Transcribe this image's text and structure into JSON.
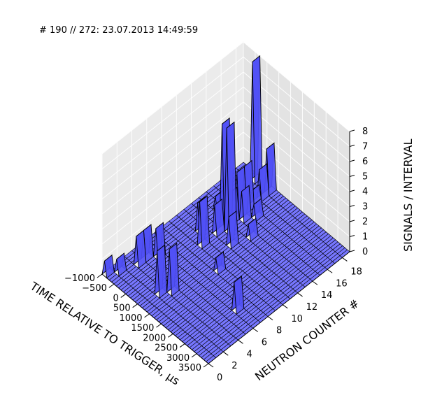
{
  "header_text": "# 190 // 272: 23.07.2013 14:49:59",
  "chart_data": {
    "type": "area",
    "title": "",
    "xlabel": "TIME RELATIVE TO TRIGGER, μs",
    "ylabel": "NEUTRON COUNTER #",
    "zlabel": "SIGNALS / INTERVAL",
    "xlim": [
      -1000,
      3500
    ],
    "ylim": [
      0,
      19
    ],
    "zlim": [
      0,
      8
    ],
    "xticks": [
      "−1000",
      "−500",
      "0",
      "500",
      "1000",
      "1500",
      "2000",
      "2500",
      "3000",
      "3500"
    ],
    "xtick_values": [
      -1000,
      -500,
      0,
      500,
      1000,
      1500,
      2000,
      2500,
      3000,
      3500
    ],
    "yticks": [
      "0",
      "2",
      "4",
      "6",
      "8",
      "10",
      "12",
      "14",
      "16",
      "18"
    ],
    "ytick_values": [
      0,
      2,
      4,
      6,
      8,
      10,
      12,
      14,
      16,
      18
    ],
    "zticks": [
      "0",
      "1",
      "2",
      "3",
      "4",
      "5",
      "6",
      "7",
      "8"
    ],
    "ztick_values": [
      0,
      1,
      2,
      3,
      4,
      5,
      6,
      7,
      8
    ],
    "grid": true,
    "face_color": "#6b6bff",
    "edge_color": "#000000",
    "counters": [
      0,
      1,
      2,
      3,
      4,
      5,
      6,
      7,
      8,
      9,
      10,
      11,
      12,
      13,
      14,
      15,
      16,
      17,
      18,
      19
    ],
    "time_bins": [
      -1000,
      -900,
      -800,
      -700,
      -600,
      -500,
      -400,
      -300,
      -200,
      -100,
      0,
      100,
      200,
      300,
      400,
      500,
      600,
      700,
      800,
      900,
      1000,
      1100,
      1200,
      1300,
      1400,
      1500,
      1600,
      1700,
      1800,
      1900,
      2000,
      2100,
      2200,
      2300,
      2400,
      2500,
      2600,
      2700,
      2800,
      2900,
      3000,
      3100,
      3200,
      3300,
      3400,
      3500
    ],
    "peaks": [
      {
        "counter": 0,
        "time": -900,
        "value": 1
      },
      {
        "counter": 1,
        "time": -700,
        "value": 1
      },
      {
        "counter": 3,
        "time": -500,
        "value": 2
      },
      {
        "counter": 4,
        "time": -500,
        "value": 2
      },
      {
        "counter": 2,
        "time": 700,
        "value": 3
      },
      {
        "counter": 3,
        "time": 900,
        "value": 3
      },
      {
        "counter": 5,
        "time": -300,
        "value": 2
      },
      {
        "counter": 6,
        "time": 2700,
        "value": 2
      },
      {
        "counter": 8,
        "time": 1300,
        "value": 1
      },
      {
        "counter": 9,
        "time": 300,
        "value": 3
      },
      {
        "counter": 10,
        "time": -100,
        "value": 2
      },
      {
        "counter": 11,
        "time": 300,
        "value": 2
      },
      {
        "counter": 11,
        "time": 900,
        "value": 2
      },
      {
        "counter": 12,
        "time": 300,
        "value": 7
      },
      {
        "counter": 12,
        "time": 500,
        "value": 7
      },
      {
        "counter": 13,
        "time": -300,
        "value": 1
      },
      {
        "counter": 13,
        "time": 300,
        "value": 2
      },
      {
        "counter": 13,
        "time": 1100,
        "value": 1
      },
      {
        "counter": 14,
        "time": 300,
        "value": 3
      },
      {
        "counter": 14,
        "time": 500,
        "value": 2
      },
      {
        "counter": 15,
        "time": 300,
        "value": 3
      },
      {
        "counter": 15,
        "time": 700,
        "value": 1
      },
      {
        "counter": 16,
        "time": 300,
        "value": 1
      },
      {
        "counter": 17,
        "time": 300,
        "value": 2
      },
      {
        "counter": 18,
        "time": -300,
        "value": 8
      },
      {
        "counter": 18,
        "time": 300,
        "value": 3
      }
    ]
  }
}
